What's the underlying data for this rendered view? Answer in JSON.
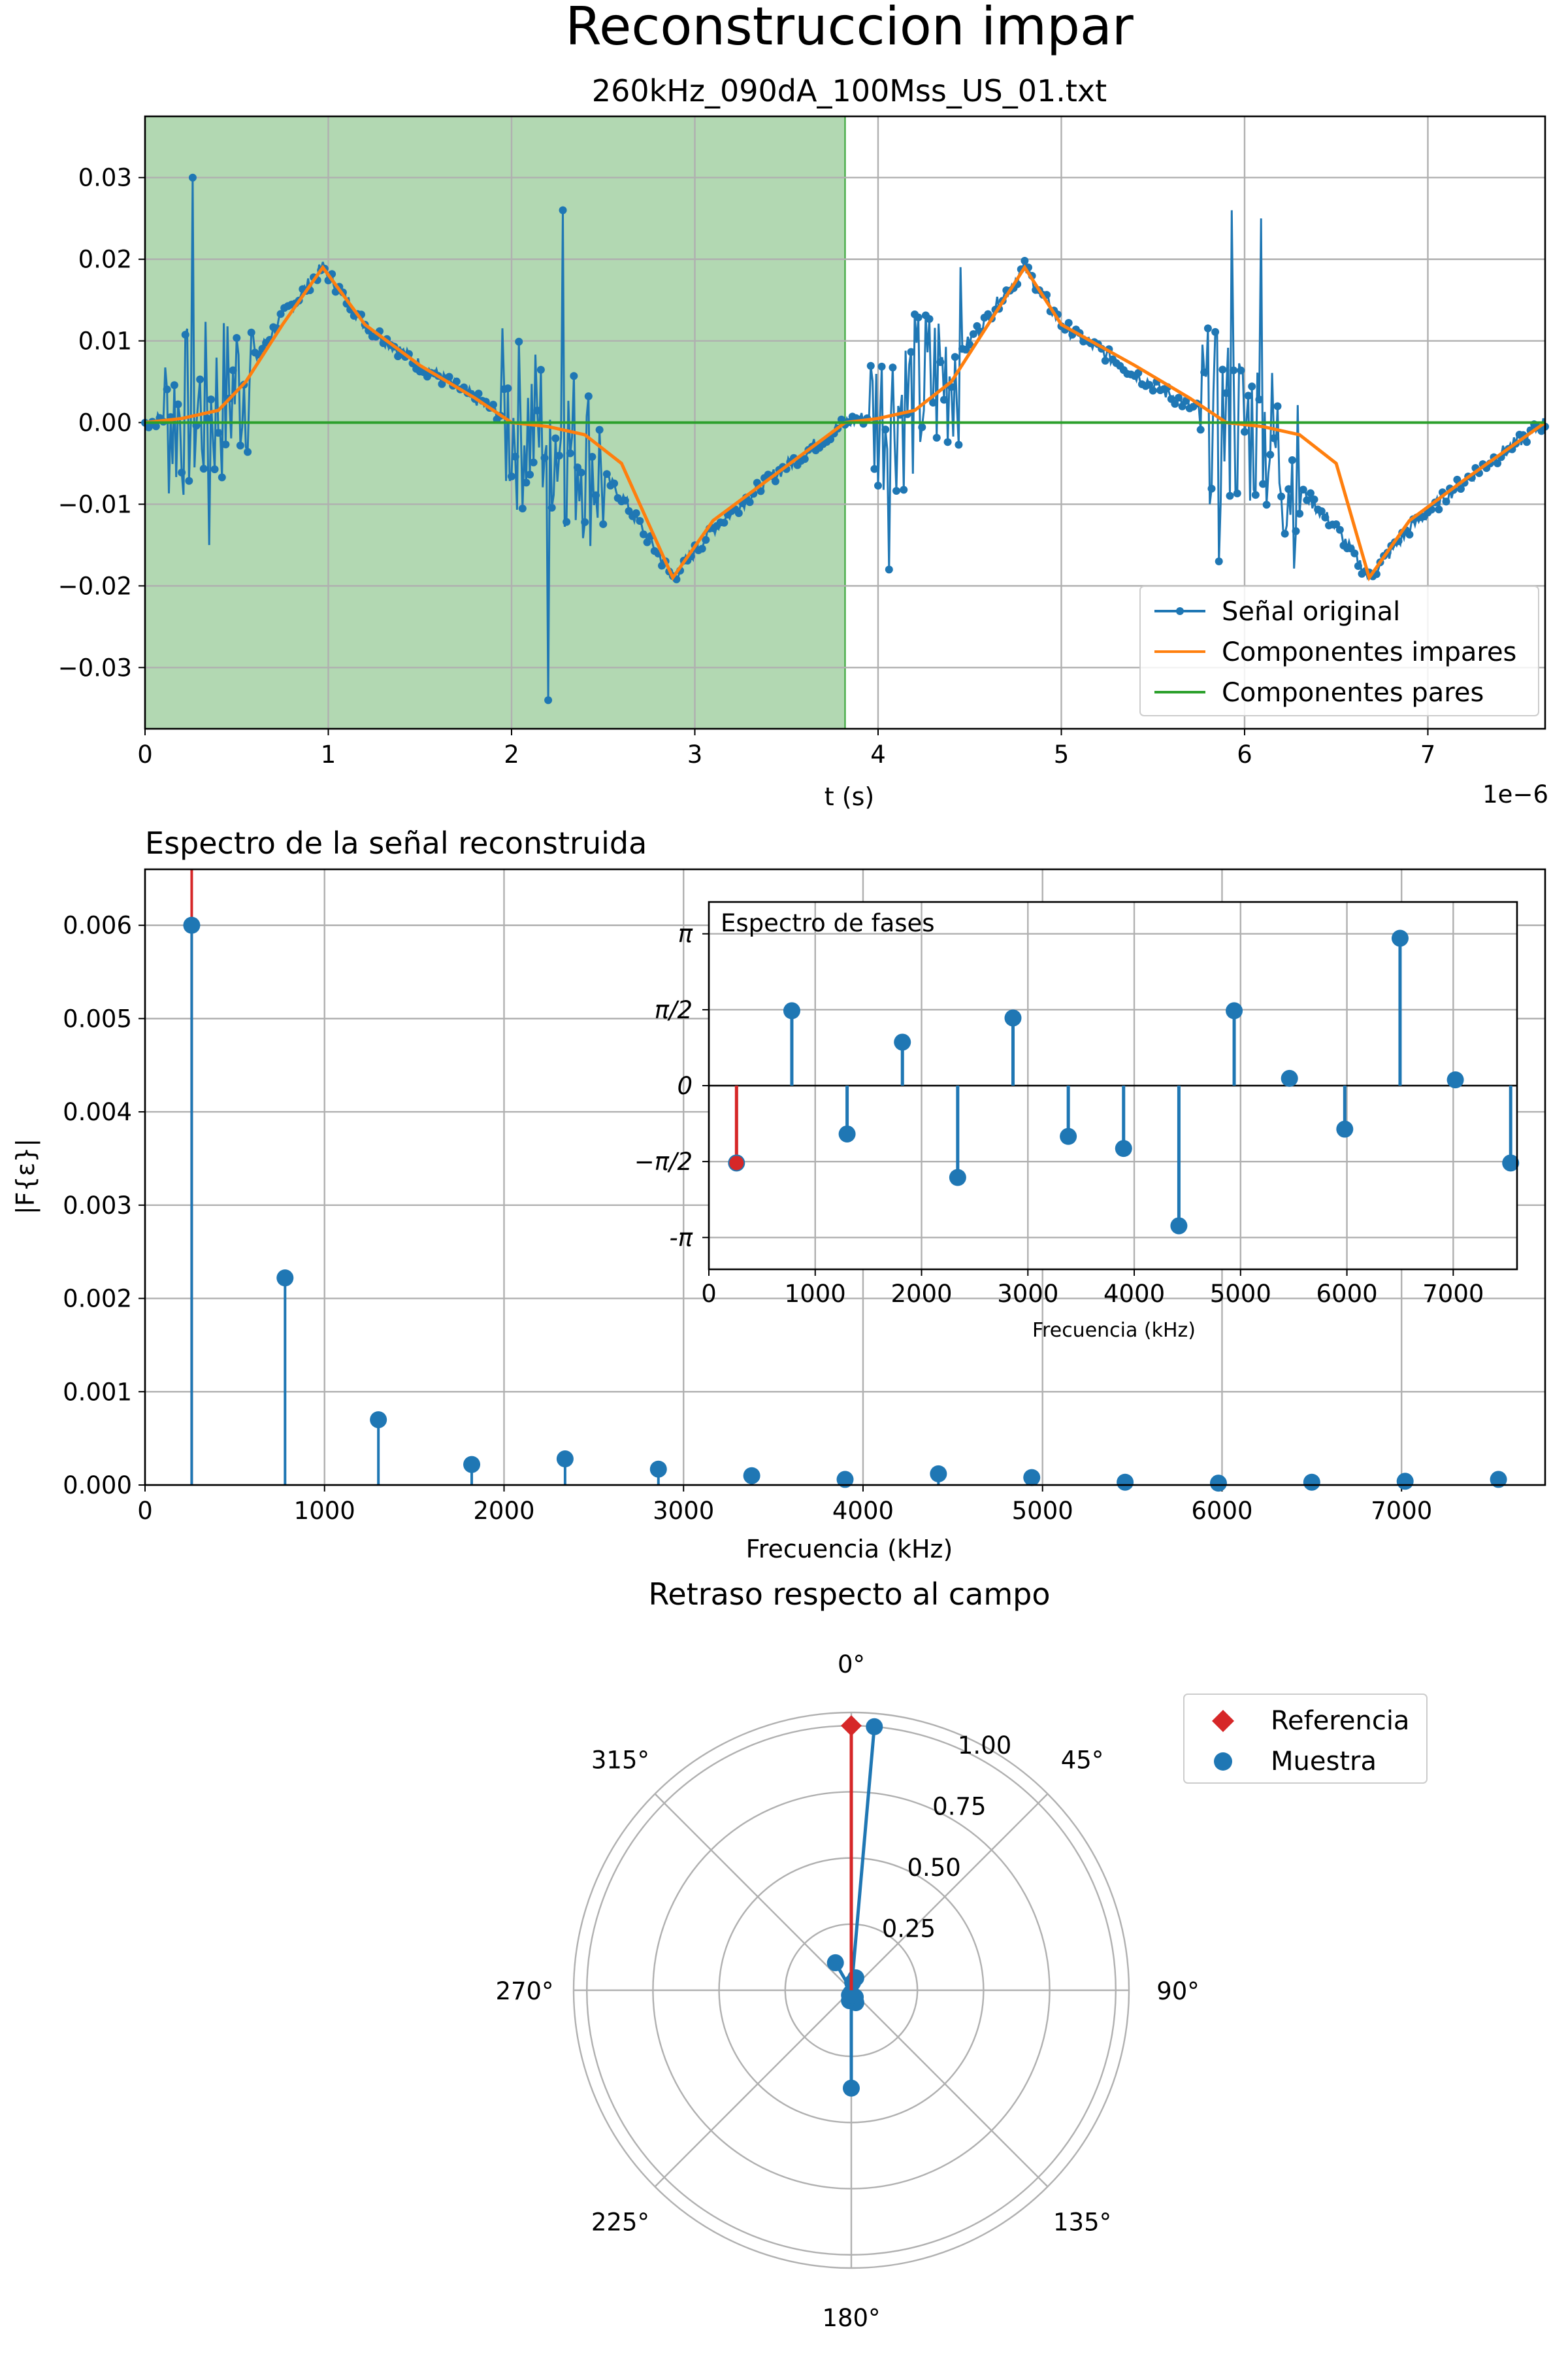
{
  "figure": {
    "suptitle": "Reconstruccion impar",
    "colors": {
      "blue": "#1f77b4",
      "orange": "#ff7f0e",
      "green": "#2ca02c",
      "red": "#d62728",
      "shade": "#b2d8b2"
    }
  },
  "chart_data": [
    {
      "type": "line",
      "title": "260kHz_090dA_100Mss_US_01.txt",
      "xlabel": "t (s)",
      "ylabel": "",
      "x_offset_label": "1e−6",
      "xlim": [
        0,
        7.64
      ],
      "ylim": [
        -0.0375,
        0.0375
      ],
      "x_ticks": [
        0,
        1,
        2,
        3,
        4,
        5,
        6,
        7
      ],
      "x_tick_labels": [
        "0",
        "1",
        "2",
        "3",
        "4",
        "5",
        "6",
        "7"
      ],
      "y_ticks": [
        -0.03,
        -0.02,
        -0.01,
        0.0,
        0.01,
        0.02,
        0.03
      ],
      "y_tick_labels": [
        "−0.03",
        "−0.02",
        "−0.01",
        "0.00",
        "0.01",
        "0.02",
        "0.03"
      ],
      "shaded_region": [
        0,
        3.82
      ],
      "grid": true,
      "legend": {
        "position": "lower-right",
        "entries": [
          "Señal original",
          "Componentes impares",
          "Componentes pares"
        ]
      },
      "series": [
        {
          "name": "Señal original",
          "style": "line-with-dots",
          "note": "oscillating signal, bursts of spikes near t≈0.25, 2.2, 4.2, 6.0",
          "x": [
            0,
            0.2,
            0.4,
            0.55,
            0.75,
            0.97,
            1.2,
            1.5,
            1.8,
            2.0,
            2.2,
            2.4,
            2.6,
            2.88,
            3.1,
            3.4,
            3.82,
            4.0,
            4.2,
            4.4,
            4.6,
            4.8,
            5.0,
            5.4,
            5.7,
            5.9,
            6.1,
            6.3,
            6.5,
            6.68,
            6.9,
            7.2,
            7.64
          ],
          "y": [
            0.0,
            0.001,
            0.002,
            0.006,
            0.013,
            0.019,
            0.012,
            0.007,
            0.003,
            0.0,
            -0.001,
            -0.004,
            -0.009,
            -0.019,
            -0.013,
            -0.007,
            0.0,
            0.001,
            0.003,
            0.007,
            0.013,
            0.019,
            0.012,
            0.006,
            0.002,
            0.0,
            -0.001,
            -0.008,
            -0.013,
            -0.019,
            -0.013,
            -0.007,
            0.0
          ],
          "spikes": [
            0.03,
            -0.015,
            0.026,
            -0.034,
            0.026,
            -0.017,
            0.025,
            -0.018
          ]
        },
        {
          "name": "Componentes impares",
          "style": "line",
          "x": [
            0,
            0.2,
            0.4,
            0.55,
            0.75,
            0.97,
            1.2,
            1.5,
            1.8,
            2.0,
            2.2,
            2.4,
            2.6,
            2.88,
            3.1,
            3.4,
            3.82,
            4.0,
            4.2,
            4.4,
            4.6,
            4.8,
            5.0,
            5.4,
            5.7,
            5.9,
            6.1,
            6.3,
            6.5,
            6.68,
            6.9,
            7.2,
            7.64
          ],
          "y": [
            0.0,
            0.0005,
            0.0015,
            0.005,
            0.012,
            0.019,
            0.012,
            0.007,
            0.003,
            0.0,
            -0.0005,
            -0.0015,
            -0.005,
            -0.019,
            -0.012,
            -0.007,
            0.0,
            0.0005,
            0.0015,
            0.005,
            0.012,
            0.019,
            0.012,
            0.007,
            0.003,
            0.0,
            -0.0005,
            -0.0015,
            -0.005,
            -0.019,
            -0.012,
            -0.007,
            0.0
          ]
        },
        {
          "name": "Componentes pares",
          "style": "line",
          "x": [
            0,
            7.64
          ],
          "y": [
            0.0,
            0.0
          ]
        }
      ]
    },
    {
      "type": "stem",
      "title": "Espectro de la señal reconstruida",
      "xlabel": "Frecuencia (kHz)",
      "ylabel": "|F{ε}|",
      "xlim": [
        0,
        7800
      ],
      "ylim": [
        0,
        0.0066
      ],
      "x_ticks": [
        0,
        1000,
        2000,
        3000,
        4000,
        5000,
        6000,
        7000
      ],
      "y_ticks": [
        0.0,
        0.001,
        0.002,
        0.003,
        0.004,
        0.005,
        0.006
      ],
      "y_tick_labels": [
        "0.000",
        "0.001",
        "0.002",
        "0.003",
        "0.004",
        "0.005",
        "0.006"
      ],
      "reference_line_x": 260,
      "grid": true,
      "x": [
        260,
        780,
        1300,
        1820,
        2340,
        2860,
        3380,
        3900,
        4420,
        4940,
        5460,
        5980,
        6500,
        7020,
        7540
      ],
      "values": [
        0.006,
        0.00222,
        0.0007,
        0.00022,
        0.00028,
        0.00017,
        0.0001,
        6e-05,
        0.00012,
        8e-05,
        3e-05,
        2e-05,
        3e-05,
        4e-05,
        6e-05
      ]
    },
    {
      "type": "stem",
      "title": "Espectro de fases",
      "xlabel": "Frecuencia (kHz)",
      "ylabel": "",
      "xlim": [
        0,
        7600
      ],
      "ylim": [
        -3.8,
        3.8
      ],
      "x_ticks": [
        0,
        1000,
        2000,
        3000,
        4000,
        5000,
        6000,
        7000
      ],
      "y_ticks": [
        -3.14159,
        -1.5708,
        0,
        1.5708,
        3.14159
      ],
      "y_tick_labels": [
        "-π",
        "−π/2",
        "0",
        "π/2",
        "π"
      ],
      "x": [
        260,
        780,
        1300,
        1820,
        2340,
        2860,
        3380,
        3900,
        4420,
        4940,
        5460,
        5980,
        6500,
        7020,
        7540
      ],
      "values": [
        -1.6,
        1.55,
        -1.0,
        0.9,
        -1.9,
        1.4,
        -1.05,
        -1.3,
        -2.9,
        1.55,
        0.15,
        -0.9,
        3.05,
        0.12,
        -1.6
      ]
    },
    {
      "type": "polar",
      "title": "Retraso respecto al campo",
      "angle_labels": [
        "0°",
        "45°",
        "90°",
        "135°",
        "180°",
        "225°",
        "270°",
        "315°"
      ],
      "r_ticks": [
        0.25,
        0.5,
        0.75,
        1.0
      ],
      "r_tick_labels": [
        "0.25",
        "0.50",
        "0.75",
        "1.00"
      ],
      "rmax": 1.05,
      "legend": {
        "position": "upper-right",
        "entries": [
          "Referencia",
          "Muestra"
        ]
      },
      "series": [
        {
          "name": "Referencia",
          "marker": "diamond",
          "theta_deg": [
            0
          ],
          "r": [
            1.0
          ]
        },
        {
          "name": "Muestra",
          "marker": "circle",
          "theta_deg": [
            5,
            330,
            20,
            180,
            190,
            160,
            175,
            200,
            150,
            10,
            185,
            195,
            170
          ],
          "r": [
            1.0,
            0.12,
            0.05,
            0.37,
            0.04,
            0.05,
            0.02,
            0.02,
            0.03,
            0.03,
            0.01,
            0.02,
            0.02
          ]
        }
      ]
    }
  ]
}
